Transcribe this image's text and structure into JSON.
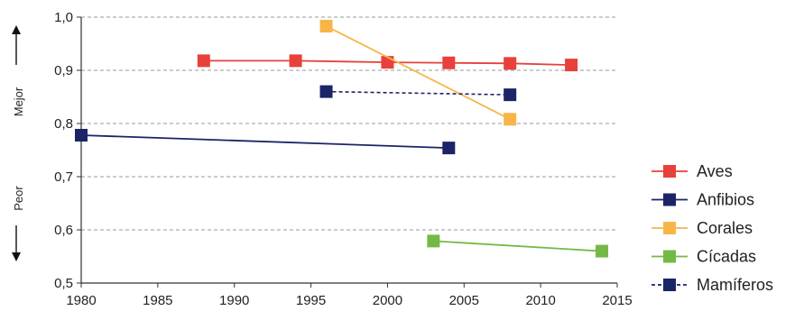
{
  "chart_data": {
    "type": "line",
    "xlim": [
      1980,
      2015
    ],
    "ylim": [
      0.5,
      1.0
    ],
    "x_ticks": [
      "1980",
      "1985",
      "1990",
      "1995",
      "2000",
      "2005",
      "2010",
      "2015"
    ],
    "y_ticks": [
      "0,5",
      "0,6",
      "0,7",
      "0,8",
      "0,9",
      "1,0"
    ],
    "y_tick_values": [
      0.5,
      0.6,
      0.7,
      0.8,
      0.9,
      1.0
    ],
    "x_tick_values": [
      1980,
      1985,
      1990,
      1995,
      2000,
      2005,
      2010,
      2015
    ],
    "grid": "horizontal dashed",
    "legend_position": "right",
    "side_labels": {
      "better": "Mejor",
      "worse": "Peor"
    },
    "series": [
      {
        "name": "Aves",
        "color": "#e8403a",
        "dashed": false,
        "points": [
          [
            1988,
            0.918
          ],
          [
            1994,
            0.918
          ],
          [
            2000,
            0.915
          ],
          [
            2004,
            0.914
          ],
          [
            2008,
            0.913
          ],
          [
            2012,
            0.91
          ]
        ]
      },
      {
        "name": "Anfibios",
        "color": "#1b2466",
        "dashed": false,
        "points": [
          [
            1980,
            0.778
          ],
          [
            2004,
            0.754
          ]
        ]
      },
      {
        "name": "Corales",
        "color": "#f7b548",
        "dashed": false,
        "points": [
          [
            1996,
            0.983
          ],
          [
            2008,
            0.808
          ]
        ]
      },
      {
        "name": "Cícadas",
        "color": "#74b946",
        "dashed": false,
        "points": [
          [
            2003,
            0.579
          ],
          [
            2014,
            0.56
          ]
        ]
      },
      {
        "name": "Mamíferos",
        "color": "#1b2466",
        "dashed": true,
        "points": [
          [
            1996,
            0.86
          ],
          [
            2008,
            0.854
          ]
        ]
      }
    ]
  }
}
